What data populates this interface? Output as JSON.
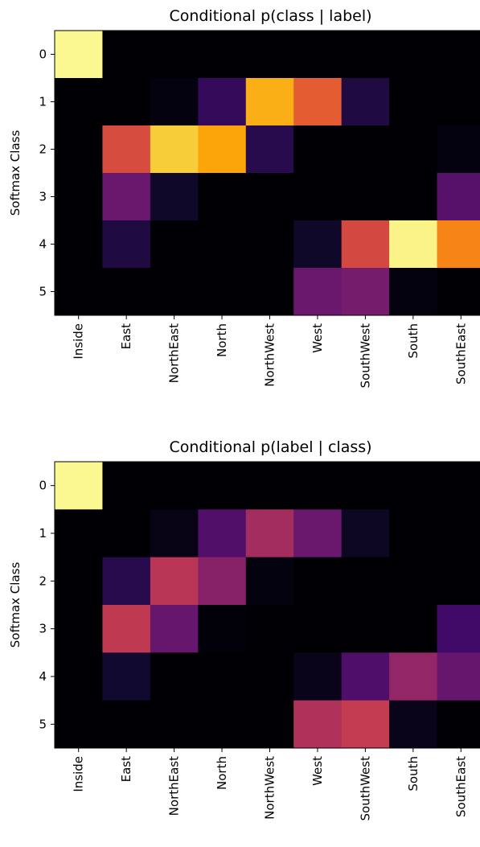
{
  "chart_data": [
    {
      "type": "heatmap",
      "title": "Conditional p(class | label)",
      "xlabel": "",
      "ylabel": "Softmax Class",
      "x_categories": [
        "Inside",
        "East",
        "NorthEast",
        "North",
        "NorthWest",
        "West",
        "SouthWest",
        "South",
        "SouthEast"
      ],
      "y_categories": [
        "0",
        "1",
        "2",
        "3",
        "4",
        "5"
      ],
      "colormap": "inferno",
      "value_range": [
        0,
        1
      ],
      "values": [
        [
          0.98,
          0.0,
          0.0,
          0.0,
          0.0,
          0.0,
          0.0,
          0.0,
          0.0
        ],
        [
          0.0,
          0.0,
          0.02,
          0.17,
          0.82,
          0.63,
          0.12,
          0.0,
          0.0
        ],
        [
          0.0,
          0.58,
          0.88,
          0.8,
          0.14,
          0.0,
          0.0,
          0.0,
          0.02
        ],
        [
          0.0,
          0.3,
          0.07,
          0.0,
          0.0,
          0.0,
          0.0,
          0.0,
          0.25
        ],
        [
          0.0,
          0.12,
          0.0,
          0.0,
          0.0,
          0.07,
          0.57,
          0.97,
          0.73
        ],
        [
          0.0,
          0.0,
          0.0,
          0.0,
          0.0,
          0.3,
          0.33,
          0.02,
          0.0
        ]
      ]
    },
    {
      "type": "heatmap",
      "title": "Conditional p(label | class)",
      "xlabel": "",
      "ylabel": "Softmax Class",
      "x_categories": [
        "Inside",
        "East",
        "NorthEast",
        "North",
        "NorthWest",
        "West",
        "SouthWest",
        "South",
        "SouthEast"
      ],
      "y_categories": [
        "0",
        "1",
        "2",
        "3",
        "4",
        "5"
      ],
      "colormap": "inferno",
      "value_range": [
        0,
        1
      ],
      "values": [
        [
          0.98,
          0.0,
          0.0,
          0.0,
          0.0,
          0.0,
          0.0,
          0.0,
          0.0
        ],
        [
          0.0,
          0.0,
          0.03,
          0.24,
          0.44,
          0.3,
          0.06,
          0.0,
          0.0
        ],
        [
          0.0,
          0.14,
          0.49,
          0.37,
          0.02,
          0.0,
          0.0,
          0.0,
          0.0
        ],
        [
          0.0,
          0.51,
          0.29,
          0.01,
          0.0,
          0.0,
          0.0,
          0.0,
          0.2
        ],
        [
          0.0,
          0.08,
          0.0,
          0.0,
          0.0,
          0.04,
          0.23,
          0.4,
          0.29
        ],
        [
          0.0,
          0.0,
          0.0,
          0.0,
          0.0,
          0.47,
          0.52,
          0.04,
          0.0
        ]
      ]
    }
  ]
}
